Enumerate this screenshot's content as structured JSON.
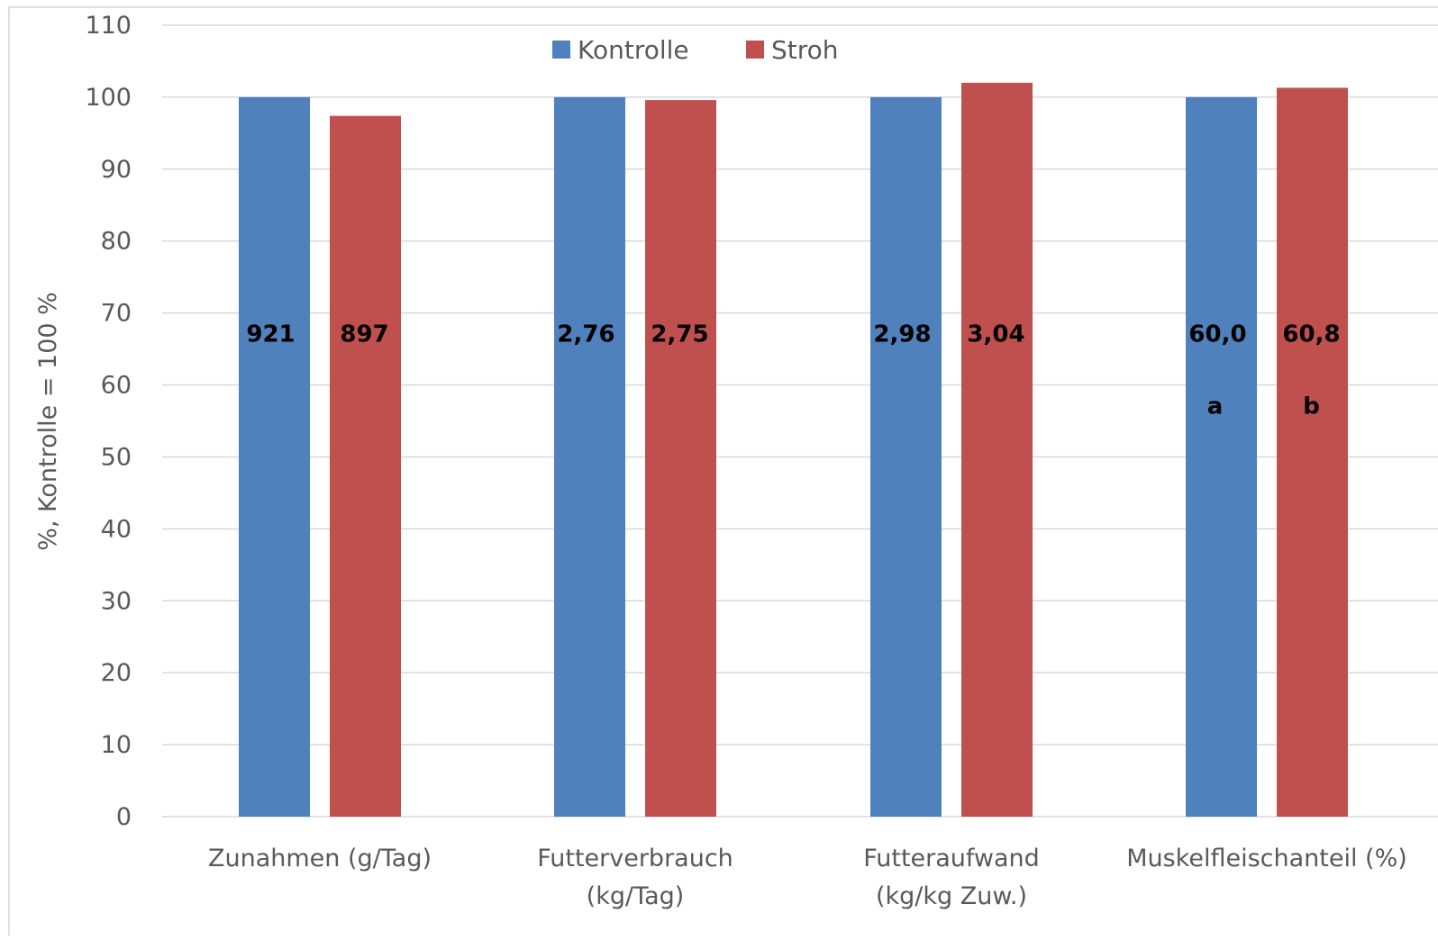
{
  "chart_data": {
    "type": "bar",
    "title": "",
    "xlabel": "",
    "ylabel": "%, Kontrolle = 100 %",
    "ylim": [
      0,
      110
    ],
    "ytick_step": 10,
    "grid": true,
    "legend_placement": "top-center",
    "categories": [
      [
        "Zunahmen     (g/Tag)"
      ],
      [
        "Futterverbrauch",
        "(kg/Tag)"
      ],
      [
        "Futteraufwand",
        "(kg/kg Zuw.)"
      ],
      [
        "Muskelfleischanteil (%)"
      ]
    ],
    "series": [
      {
        "name": "Kontrolle",
        "color": "#4F81BD",
        "values": [
          100,
          100,
          100,
          100
        ],
        "labels": [
          "921",
          "2,76",
          "2,98",
          "60,0"
        ],
        "letters": [
          "",
          "",
          "",
          "a"
        ]
      },
      {
        "name": "Stroh",
        "color": "#C0504D",
        "values": [
          97.4,
          99.6,
          102.0,
          101.3
        ],
        "labels": [
          "897",
          "2,75",
          "3,04",
          "60,8"
        ],
        "letters": [
          "",
          "",
          "",
          "b"
        ]
      }
    ],
    "colors": {
      "grid": "#D9D9D9",
      "axis": "#D9D9D9",
      "text": "#595959",
      "background": "#FFFFFF"
    }
  }
}
